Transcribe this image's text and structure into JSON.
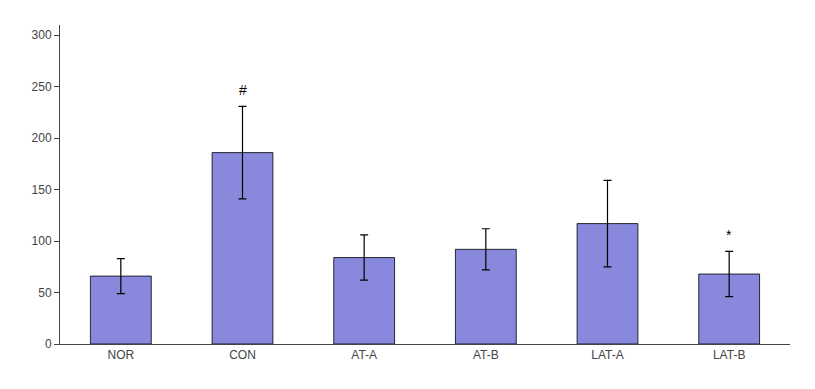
{
  "chart_data": {
    "type": "bar",
    "categories": [
      "NOR",
      "CON",
      "AT-A",
      "AT-B",
      "LAT-A",
      "LAT-B"
    ],
    "values": [
      66,
      186,
      84,
      92,
      117,
      68
    ],
    "errors": [
      17,
      45,
      22,
      20,
      42,
      22
    ],
    "color": "#8888dd",
    "annotations": [
      {
        "category": "CON",
        "text": "#"
      },
      {
        "category": "LAT-B",
        "text": "*"
      }
    ],
    "ylim": [
      0,
      310
    ],
    "yticks": [
      0,
      50,
      100,
      150,
      200,
      250,
      300
    ],
    "grid": false
  }
}
